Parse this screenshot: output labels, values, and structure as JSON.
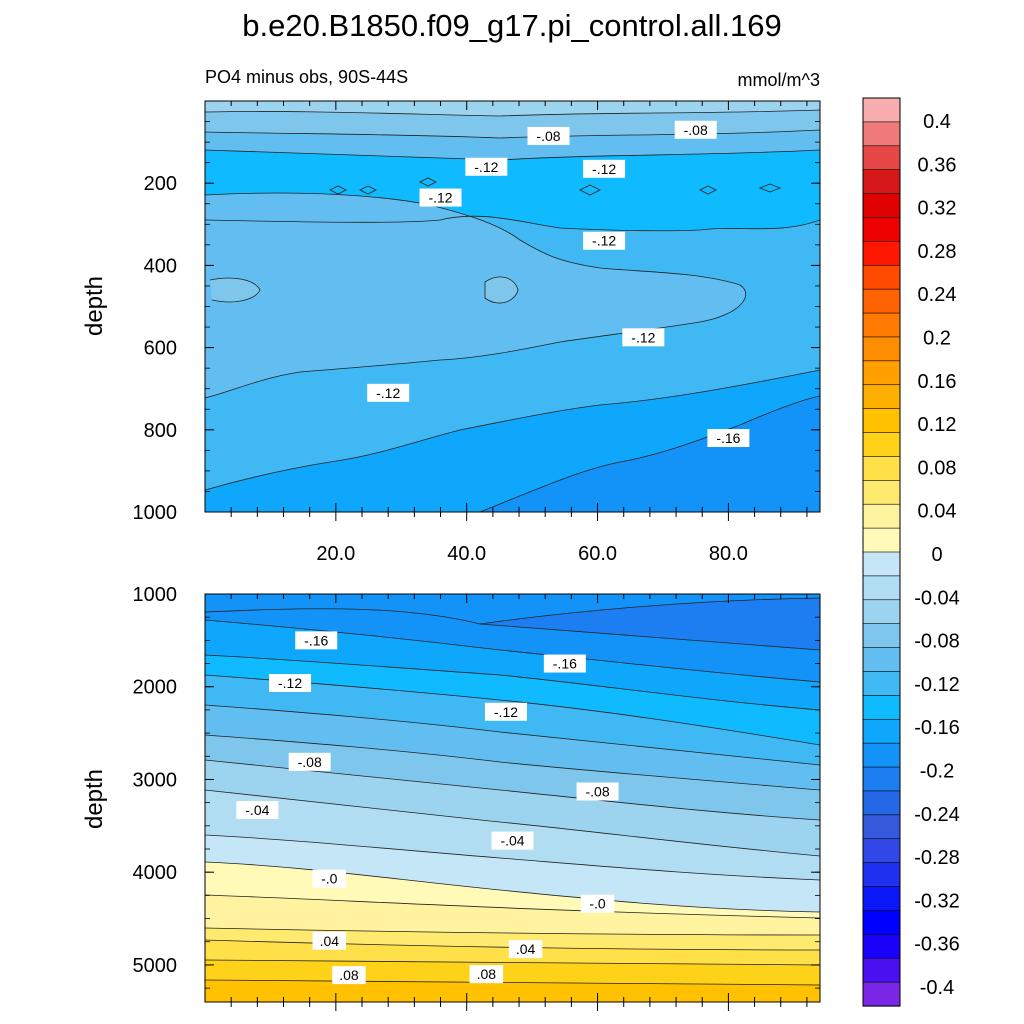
{
  "chart_data": [
    {
      "type": "contour",
      "panel": "upper",
      "title": "b.e20.B1850.f09_g17.pi_control.all.169",
      "subtitle_left": "PO4 minus obs, 90S-44S",
      "subtitle_right": "mmol/m^3",
      "xlabel": "",
      "ylabel": "depth",
      "xlim": [
        0,
        94
      ],
      "ylim": [
        1000,
        0
      ],
      "xticks": [
        "20.0",
        "40.0",
        "60.0",
        "80.0"
      ],
      "yticks": [
        "200",
        "400",
        "600",
        "800",
        "1000"
      ],
      "contour_labels": [
        {
          "text": "-.08",
          "x": 52.5,
          "y": 85
        },
        {
          "text": "-.08",
          "x": 75,
          "y": 70
        },
        {
          "text": "-.12",
          "x": 43,
          "y": 160
        },
        {
          "text": "-.12",
          "x": 61,
          "y": 165
        },
        {
          "text": "-.12",
          "x": 36,
          "y": 235
        },
        {
          "text": "-.12",
          "x": 61,
          "y": 340
        },
        {
          "text": "-.12",
          "x": 67,
          "y": 575
        },
        {
          "text": "-.12",
          "x": 28,
          "y": 710
        },
        {
          "text": "-.16",
          "x": 80,
          "y": 820
        }
      ]
    },
    {
      "type": "contour",
      "panel": "lower",
      "xlabel": "",
      "ylabel": "depth",
      "xlim": [
        0,
        94
      ],
      "ylim": [
        5400,
        1000
      ],
      "yticks": [
        "1000",
        "2000",
        "3000",
        "4000",
        "5000"
      ],
      "contour_labels": [
        {
          "text": "-.16",
          "x": 17,
          "y": 1500
        },
        {
          "text": "-.16",
          "x": 55,
          "y": 1750
        },
        {
          "text": "-.12",
          "x": 13,
          "y": 1960
        },
        {
          "text": "-.12",
          "x": 46,
          "y": 2270
        },
        {
          "text": "-.08",
          "x": 16,
          "y": 2810
        },
        {
          "text": "-.08",
          "x": 60,
          "y": 3130
        },
        {
          "text": "-.04",
          "x": 8,
          "y": 3330
        },
        {
          "text": "-.04",
          "x": 47,
          "y": 3660
        },
        {
          "text": "-.0",
          "x": 19,
          "y": 4070
        },
        {
          "text": "-.0",
          "x": 60,
          "y": 4340
        },
        {
          "text": ".04",
          "x": 19,
          "y": 4740
        },
        {
          "text": ".04",
          "x": 49,
          "y": 4830
        },
        {
          "text": ".08",
          "x": 22,
          "y": 5110
        },
        {
          "text": ".08",
          "x": 43,
          "y": 5100
        }
      ]
    }
  ],
  "colorbar": {
    "labels": [
      "0.4",
      "0.36",
      "0.32",
      "0.28",
      "0.24",
      "0.2",
      "0.16",
      "0.12",
      "0.08",
      "0.04",
      "0",
      "-0.04",
      "-0.08",
      "-0.12",
      "-0.16",
      "-0.2",
      "-0.24",
      "-0.28",
      "-0.32",
      "-0.36",
      "-0.4"
    ],
    "colors_top_to_bottom": [
      "#F8AEAE",
      "#F07A7A",
      "#E64848",
      "#D61818",
      "#E10000",
      "#EE0000",
      "#FF1700",
      "#FF4A00",
      "#FF6200",
      "#FF7A00",
      "#FF8D00",
      "#FF9F00",
      "#FFAF00",
      "#FFC100",
      "#FFD21A",
      "#FFE048",
      "#FFEA70",
      "#FFF3A0",
      "#FFFAB8",
      "#C4E6F6",
      "#B0DDF2",
      "#9CD3EE",
      "#7FC6ED",
      "#62BEF0",
      "#3FB8F4",
      "#10BAFF",
      "#0EA7FC",
      "#1393F8",
      "#1C7EF0",
      "#2568E6",
      "#3559DB",
      "#3248E6",
      "#1F30F0",
      "#0A18F8",
      "#0000FF",
      "#1B00FA",
      "#4A10F0",
      "#7A28E6"
    ]
  }
}
